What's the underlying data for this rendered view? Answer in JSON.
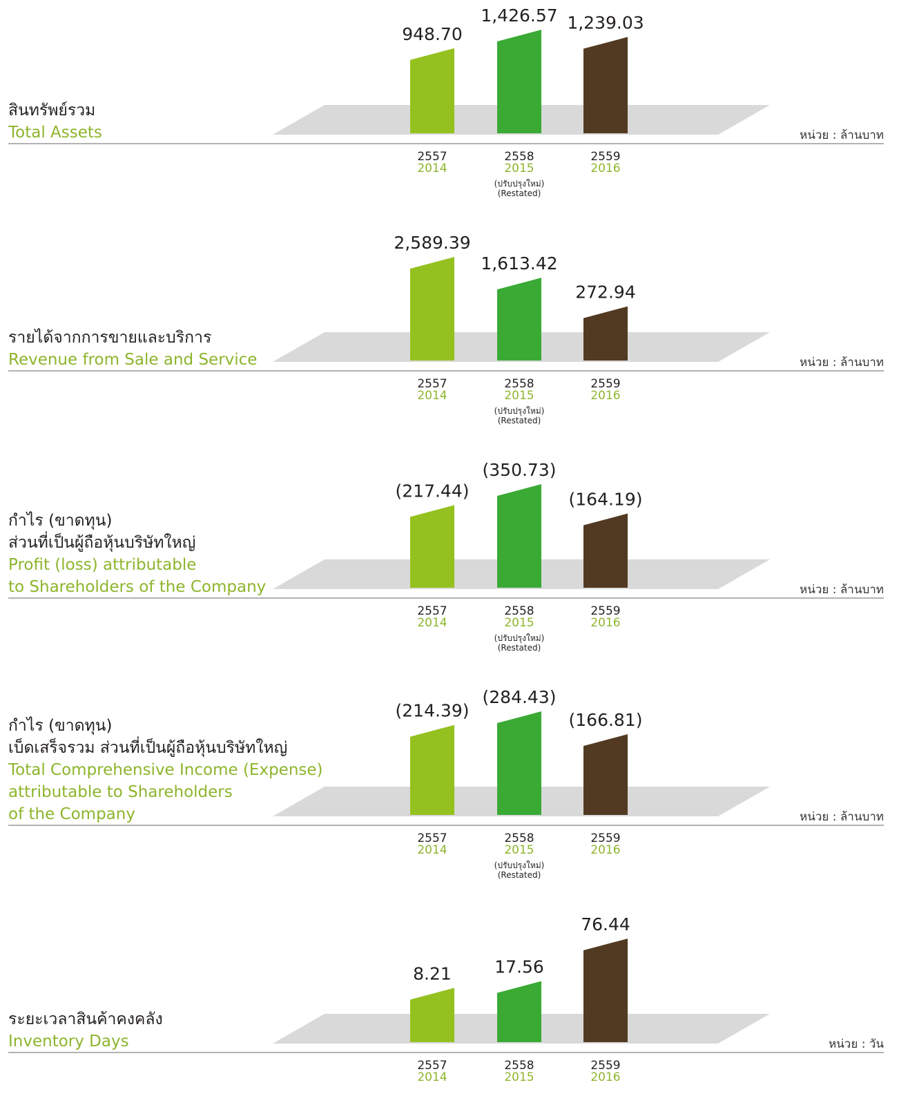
{
  "chart_data": [
    {
      "type": "bar",
      "title": [
        "สินทรัพย์รวม"
      ],
      "subtitle": [
        "Total Assets"
      ],
      "unit": "หน่วย : ล้านบาท",
      "categories": [
        "2557",
        "2558",
        "2559"
      ],
      "categories_en": [
        "2014",
        "2015",
        "2016"
      ],
      "category_notes": [
        [],
        [
          "(ปรับปรุงใหม่)",
          "(Restated)"
        ],
        []
      ],
      "colors": [
        "#94c120",
        "#3aaa35",
        "#523a22"
      ],
      "values": [
        948.7,
        1426.57,
        1239.03
      ],
      "value_labels": [
        "948.70",
        "1,426.57",
        "1,239.03"
      ]
    },
    {
      "type": "bar",
      "title": [
        "รายได้จากการขายและบริการ"
      ],
      "subtitle": [
        "Revenue from Sale and Service"
      ],
      "unit": "หน่วย : ล้านบาท",
      "categories": [
        "2557",
        "2558",
        "2559"
      ],
      "categories_en": [
        "2014",
        "2015",
        "2016"
      ],
      "category_notes": [
        [],
        [
          "(ปรับปรุงใหม่)",
          "(Restated)"
        ],
        []
      ],
      "colors": [
        "#94c120",
        "#3aaa35",
        "#523a22"
      ],
      "values": [
        2589.39,
        1613.42,
        272.94
      ],
      "value_labels": [
        "2,589.39",
        "1,613.42",
        "272.94"
      ]
    },
    {
      "type": "bar",
      "title": [
        "กำไร (ขาดทุน)",
        "ส่วนที่เป็นผู้ถือหุ้นบริษัทใหญ่"
      ],
      "subtitle": [
        "Profit (loss) attributable",
        "to Shareholders of the Company"
      ],
      "unit": "หน่วย : ล้านบาท",
      "categories": [
        "2557",
        "2558",
        "2559"
      ],
      "categories_en": [
        "2014",
        "2015",
        "2016"
      ],
      "category_notes": [
        [],
        [
          "(ปรับปรุงใหม่)",
          "(Restated)"
        ],
        []
      ],
      "colors": [
        "#94c120",
        "#3aaa35",
        "#523a22"
      ],
      "values": [
        -217.44,
        -350.73,
        -164.19
      ],
      "value_labels": [
        "(217.44)",
        "(350.73)",
        "(164.19)"
      ]
    },
    {
      "type": "bar",
      "title": [
        "กำไร (ขาดทุน)",
        "เบ็ดเสร็จรวม ส่วนที่เป็นผู้ถือหุ้นบริษัทใหญ่"
      ],
      "subtitle": [
        "Total Comprehensive Income (Expense)",
        "attributable to Shareholders",
        "of the Company"
      ],
      "unit": "หน่วย : ล้านบาท",
      "categories": [
        "2557",
        "2558",
        "2559"
      ],
      "categories_en": [
        "2014",
        "2015",
        "2016"
      ],
      "category_notes": [
        [],
        [
          "(ปรับปรุงใหม่)",
          "(Restated)"
        ],
        []
      ],
      "colors": [
        "#94c120",
        "#3aaa35",
        "#523a22"
      ],
      "values": [
        -214.39,
        -284.43,
        -166.81
      ],
      "value_labels": [
        "(214.39)",
        "(284.43)",
        "(166.81)"
      ]
    },
    {
      "type": "bar",
      "title": [
        "ระยะเวลาสินค้าคงคลัง"
      ],
      "subtitle": [
        "Inventory Days"
      ],
      "unit": "หน่วย : วัน",
      "categories": [
        "2557",
        "2558",
        "2559"
      ],
      "categories_en": [
        "2014",
        "2015",
        "2016"
      ],
      "category_notes": [
        [],
        [],
        []
      ],
      "colors": [
        "#94c120",
        "#3aaa35",
        "#523a22"
      ],
      "values": [
        8.21,
        17.56,
        76.44
      ],
      "value_labels": [
        "8.21",
        "17.56",
        "76.44"
      ]
    }
  ]
}
